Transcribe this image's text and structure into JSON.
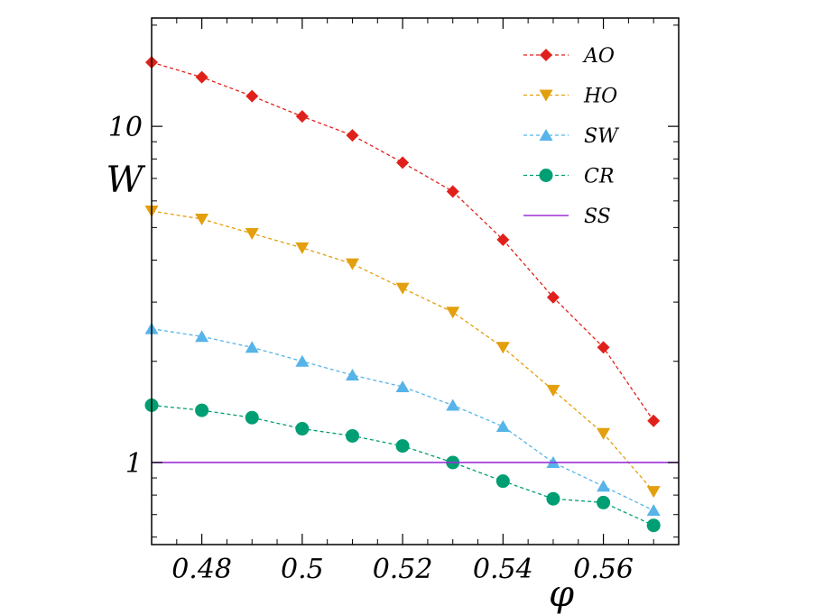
{
  "chart_data": {
    "type": "line",
    "xlabel": "φ",
    "ylabel": "W",
    "yscale": "log",
    "xlim": [
      0.47,
      0.575
    ],
    "ylim": [
      0.57,
      21
    ],
    "x_ticks": [
      0.48,
      0.5,
      0.52,
      0.54,
      0.56
    ],
    "x_tick_labels": [
      "0.48",
      "0.5",
      "0.52",
      "0.54",
      "0.56"
    ],
    "y_ticks": [
      1,
      10
    ],
    "y_tick_labels": [
      "1",
      "10"
    ],
    "legend_position": "top-right",
    "series": [
      {
        "name": "AO",
        "color": "#e0211b",
        "marker": "diamond",
        "linestyle": "dashed",
        "x": [
          0.47,
          0.48,
          0.49,
          0.5,
          0.51,
          0.52,
          0.53,
          0.54,
          0.55,
          0.56,
          0.57
        ],
        "y": [
          15.5,
          14.0,
          12.3,
          10.7,
          9.4,
          7.8,
          6.4,
          4.6,
          3.1,
          2.2,
          1.33
        ]
      },
      {
        "name": "HO",
        "color": "#e39f0d",
        "marker": "triangle-down",
        "linestyle": "dashed",
        "x": [
          0.47,
          0.48,
          0.49,
          0.5,
          0.51,
          0.52,
          0.53,
          0.54,
          0.55,
          0.56,
          0.57
        ],
        "y": [
          5.6,
          5.3,
          4.8,
          4.35,
          3.9,
          3.3,
          2.8,
          2.2,
          1.64,
          1.22,
          0.82
        ]
      },
      {
        "name": "SW",
        "color": "#56b4e9",
        "marker": "triangle-up",
        "linestyle": "dashed",
        "x": [
          0.47,
          0.48,
          0.49,
          0.5,
          0.51,
          0.52,
          0.53,
          0.54,
          0.55,
          0.56,
          0.57
        ],
        "y": [
          2.5,
          2.37,
          2.2,
          2.0,
          1.82,
          1.68,
          1.48,
          1.28,
          1.0,
          0.85,
          0.72
        ]
      },
      {
        "name": "CR",
        "color": "#009e73",
        "marker": "circle",
        "linestyle": "dashed",
        "x": [
          0.47,
          0.48,
          0.49,
          0.5,
          0.51,
          0.52,
          0.53,
          0.54,
          0.55,
          0.56,
          0.57
        ],
        "y": [
          1.48,
          1.43,
          1.36,
          1.26,
          1.2,
          1.12,
          1.0,
          0.88,
          0.78,
          0.76,
          0.65
        ]
      },
      {
        "name": "SS",
        "color": "#9b30d9",
        "marker": "none",
        "linestyle": "solid",
        "x": [
          0.47,
          0.575
        ],
        "y": [
          1.0,
          1.0
        ]
      }
    ]
  }
}
